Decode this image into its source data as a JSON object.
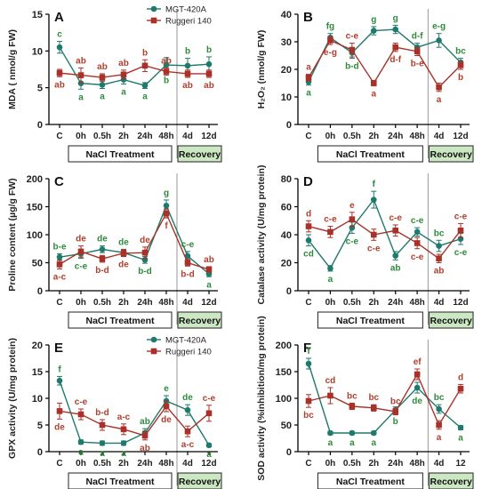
{
  "colors": {
    "series1": "#1f7a6b",
    "series2": "#a8322a",
    "letters1": "#2e8b3c",
    "letters2": "#b0402f",
    "recovery_fill": "#cce8c3",
    "axis": "#000000",
    "vline": "#9a9a9a"
  },
  "chart_data": [
    {
      "panel": "A",
      "type": "line",
      "ylabel": "MDA ( nmol/g FW)",
      "ylim": [
        0,
        15
      ],
      "yticks": [
        0,
        5,
        10,
        15
      ],
      "x": [
        "C",
        "0h",
        "0.5h",
        "2h",
        "24h",
        "48h",
        "4d",
        "12d"
      ],
      "series": [
        {
          "name": "MGT-420A",
          "values": [
            10.5,
            5.6,
            5.4,
            6.1,
            5.3,
            8.1,
            8.0,
            8.2
          ],
          "errors": [
            0.8,
            0.8,
            0.5,
            0.6,
            0.4,
            1.0,
            1.0,
            1.0
          ],
          "letters": [
            "c",
            "a",
            "a",
            "a",
            "a",
            "b",
            "b",
            "b"
          ]
        },
        {
          "name": "Ruggeri 140",
          "values": [
            7.0,
            6.7,
            6.4,
            6.8,
            8.0,
            7.2,
            6.9,
            6.9
          ],
          "errors": [
            0.5,
            1.0,
            0.5,
            0.6,
            0.8,
            0.5,
            0.5,
            0.5
          ],
          "letters": [
            "ab",
            "ab",
            "ab",
            "ab",
            "b",
            "ab",
            "ab",
            "ab"
          ]
        }
      ],
      "letter_pos": [
        [
          "above",
          "below"
        ],
        [
          "below",
          "above"
        ],
        [
          "below",
          "above"
        ],
        [
          "below",
          "above"
        ],
        [
          "below",
          "above"
        ],
        [
          "below",
          "above"
        ],
        [
          "above",
          "below"
        ],
        [
          "above",
          "below"
        ]
      ],
      "treatment_label": "NaCl Treatment",
      "recovery_label": "Recovery",
      "legend": [
        "MGT-420A",
        "Ruggeri 140"
      ]
    },
    {
      "panel": "B",
      "type": "line",
      "ylabel": "H₂O₂ (nmol/g FW)",
      "ylim": [
        0,
        40
      ],
      "yticks": [
        0,
        10,
        20,
        30,
        40
      ],
      "x": [
        "C",
        "0h",
        "0.5h",
        "2h",
        "24h",
        "48h",
        "4d",
        "12d"
      ],
      "series": [
        {
          "name": "MGT-420A",
          "values": [
            15.5,
            31.5,
            26.0,
            34.0,
            34.5,
            28.0,
            30.5,
            22.5
          ],
          "errors": [
            1.2,
            1.5,
            2.0,
            1.5,
            1.5,
            1.5,
            2.5,
            1.5
          ],
          "letters": [
            "a",
            "fg",
            "b-d",
            "g",
            "g",
            "d-f",
            "e-g",
            "bc"
          ]
        },
        {
          "name": "Ruggeri 140",
          "values": [
            17.0,
            30.5,
            27.0,
            15.0,
            28.0,
            26.5,
            13.5,
            21.5
          ],
          "errors": [
            1.2,
            1.5,
            2.5,
            1.0,
            1.5,
            1.5,
            1.5,
            1.5
          ],
          "letters": [
            "a",
            "e-g",
            "c-e",
            "a",
            "d-f",
            "b-e",
            "a",
            "b"
          ]
        }
      ],
      "letter_pos": [
        [
          "below",
          "above"
        ],
        [
          "above",
          "below"
        ],
        [
          "below",
          "above"
        ],
        [
          "above",
          "below"
        ],
        [
          "above",
          "below"
        ],
        [
          "above",
          "below"
        ],
        [
          "above",
          "below"
        ],
        [
          "above",
          "below"
        ]
      ],
      "treatment_label": "NaCl Treatment",
      "recovery_label": "Recovery"
    },
    {
      "panel": "C",
      "type": "line",
      "ylabel": "Proline content (µg/g FW)",
      "ylim": [
        0,
        200
      ],
      "yticks": [
        0,
        50,
        100,
        150,
        200
      ],
      "x": [
        "C",
        "0h",
        "0.5h",
        "2h",
        "24h",
        "48h",
        "4d",
        "12d"
      ],
      "series": [
        {
          "name": "MGT-420A",
          "values": [
            60,
            66,
            74,
            68,
            55,
            152,
            62,
            30
          ],
          "errors": [
            6,
            8,
            6,
            6,
            6,
            10,
            8,
            5
          ],
          "letters": [
            "b-e",
            "c-e",
            "de",
            "de",
            "b-d",
            "g",
            "c-e",
            "a"
          ]
        },
        {
          "name": "Ruggeri 140",
          "values": [
            47,
            70,
            57,
            67,
            68,
            138,
            50,
            38
          ],
          "errors": [
            8,
            10,
            6,
            6,
            10,
            8,
            6,
            5
          ],
          "letters": [
            "a-c",
            "de",
            "b-d",
            "de",
            "de",
            "f",
            "b-d",
            "ab"
          ]
        }
      ],
      "letter_pos": [
        [
          "above",
          "below"
        ],
        [
          "below",
          "above"
        ],
        [
          "above",
          "below"
        ],
        [
          "above",
          "below"
        ],
        [
          "below",
          "above"
        ],
        [
          "above",
          "below"
        ],
        [
          "above",
          "below"
        ],
        [
          "below",
          "above"
        ]
      ],
      "treatment_label": "NaCl Treatment",
      "recovery_label": "Recovery"
    },
    {
      "panel": "D",
      "type": "line",
      "ylabel": "Catalase activity (U/mg protein)",
      "ylim": [
        0,
        80
      ],
      "yticks": [
        0,
        20,
        40,
        60,
        80
      ],
      "x": [
        "C",
        "0h",
        "0.5h",
        "2h",
        "24h",
        "48h",
        "4d",
        "12d"
      ],
      "series": [
        {
          "name": "MGT-420A",
          "values": [
            36,
            16,
            45,
            65,
            25,
            42,
            32,
            37
          ],
          "errors": [
            4,
            2,
            4,
            6,
            3,
            3,
            4,
            4
          ],
          "letters": [
            "cd",
            "a",
            "c-e",
            "f",
            "ab",
            "c-e",
            "bc",
            "c-e"
          ]
        },
        {
          "name": "Ruggeri 140",
          "values": [
            46,
            42,
            51,
            40,
            43,
            34,
            23,
            43
          ],
          "errors": [
            4,
            4,
            5,
            4,
            4,
            4,
            3,
            5
          ],
          "letters": [
            "d",
            "c-e",
            "e",
            "c-e",
            "c-e",
            "c-e",
            "ab",
            "c-e"
          ]
        }
      ],
      "letter_pos": [
        [
          "below",
          "above"
        ],
        [
          "below",
          "above"
        ],
        [
          "below",
          "above"
        ],
        [
          "above",
          "below"
        ],
        [
          "below",
          "above"
        ],
        [
          "above",
          "below"
        ],
        [
          "above",
          "below"
        ],
        [
          "below",
          "above"
        ]
      ],
      "treatment_label": "NaCl Treatment",
      "recovery_label": "Recovery"
    },
    {
      "panel": "E",
      "type": "line",
      "ylabel": "GPX activity (U/mg protein)",
      "ylim": [
        0,
        20
      ],
      "yticks": [
        0,
        5,
        10,
        15,
        20
      ],
      "x": [
        "C",
        "0h",
        "0.5h",
        "2h",
        "24h",
        "48h",
        "4d",
        "12d"
      ],
      "series": [
        {
          "name": "MGT-420A",
          "values": [
            13.3,
            1.8,
            1.6,
            1.6,
            3.5,
            9.5,
            7.8,
            1.2
          ],
          "errors": [
            0.8,
            0.4,
            0.4,
            0.4,
            0.8,
            1.0,
            1.0,
            0.3
          ],
          "letters": [
            "f",
            "a",
            "a",
            "a",
            "ab",
            "e",
            "de",
            "a"
          ]
        },
        {
          "name": "Ruggeri 140",
          "values": [
            7.6,
            7.0,
            5.0,
            4.2,
            3.0,
            8.5,
            3.8,
            7.2
          ],
          "errors": [
            1.5,
            1.0,
            1.0,
            1.0,
            0.8,
            1.0,
            1.0,
            1.5
          ],
          "letters": [
            "de",
            "c-e",
            "b-d",
            "a-c",
            "ab",
            "de",
            "a-c",
            "c-e"
          ]
        }
      ],
      "letter_pos": [
        [
          "above",
          "below"
        ],
        [
          "below",
          "above"
        ],
        [
          "below",
          "above"
        ],
        [
          "below",
          "above"
        ],
        [
          "above",
          "below"
        ],
        [
          "above",
          "below"
        ],
        [
          "above",
          "below"
        ],
        [
          "below",
          "above"
        ]
      ],
      "treatment_label": "NaCl Treatment",
      "recovery_label": "Recovery",
      "legend": [
        "MGT-420A",
        "Ruggeri 140"
      ]
    },
    {
      "panel": "F",
      "type": "line",
      "ylabel": "SOD activity (%inhibition/mg protein)",
      "ylim": [
        0,
        200
      ],
      "yticks": [
        0,
        50,
        100,
        150,
        200
      ],
      "x": [
        "C",
        "0h",
        "0.5h",
        "2h",
        "24h",
        "48h",
        "4d",
        "12"
      ],
      "series": [
        {
          "name": "MGT-420A",
          "values": [
            165,
            35,
            35,
            35,
            78,
            120,
            80,
            45
          ],
          "errors": [
            10,
            3,
            3,
            3,
            6,
            10,
            8,
            4
          ],
          "letters": [
            "f",
            "a",
            "a",
            "a",
            "b",
            "de",
            "bc",
            "a"
          ]
        },
        {
          "name": "Ruggeri 140",
          "values": [
            95,
            105,
            85,
            82,
            75,
            145,
            50,
            118
          ],
          "errors": [
            12,
            15,
            6,
            6,
            6,
            10,
            8,
            8
          ],
          "letters": [
            "bc",
            "cd",
            "bc",
            "bc",
            "bc",
            "ef",
            "a",
            "d"
          ]
        }
      ],
      "letter_pos": [
        [
          "above",
          "below"
        ],
        [
          "below",
          "above"
        ],
        [
          "below",
          "above"
        ],
        [
          "below",
          "above"
        ],
        [
          "below",
          "above"
        ],
        [
          "below",
          "above"
        ],
        [
          "above",
          "below"
        ],
        [
          "below",
          "above"
        ]
      ],
      "treatment_label": "NaCl Treatment",
      "recovery_label": "Recovery"
    }
  ]
}
